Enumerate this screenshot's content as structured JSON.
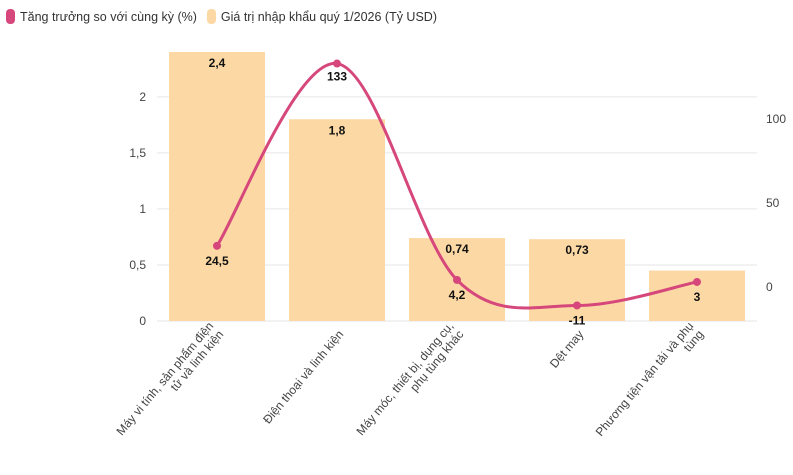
{
  "chart_data": {
    "type": "bar",
    "categories": [
      [
        "Máy vi tính, sản phẩm điện",
        "tử và linh kiện"
      ],
      [
        "Điện thoại và linh kiện"
      ],
      [
        "Máy móc, thiết bị, dụng cụ,",
        "phụ tùng khác"
      ],
      [
        "Dệt may"
      ],
      [
        "Phương tiện vận tải và phụ",
        "tùng"
      ]
    ],
    "series": [
      {
        "name": "Giá trị nhập khẩu quý 1/2026 (Tỷ USD)",
        "type": "bar",
        "axis": "left",
        "color": "#fcd9a4",
        "values": [
          2.4,
          1.8,
          0.74,
          0.73,
          0.45
        ],
        "labels": [
          "2,4",
          "1,8",
          "0,74",
          "0,73",
          ""
        ]
      },
      {
        "name": "Tăng trưởng so với cùng kỳ (%)",
        "type": "line",
        "axis": "right",
        "color": "#d6477b",
        "values": [
          24.5,
          133,
          4.2,
          -11,
          3
        ],
        "labels": [
          "24,5",
          "133",
          "4,2",
          "-11",
          "3"
        ]
      }
    ],
    "left_axis": {
      "ylim": [
        0,
        2.4
      ],
      "ticks": [
        0,
        0.5,
        1,
        1.5,
        2
      ],
      "tick_labels": [
        "0",
        "0,5",
        "1",
        "1,5",
        "2"
      ]
    },
    "right_axis": {
      "ylim": [
        -20,
        140
      ],
      "ticks": [
        0,
        50,
        100
      ],
      "tick_labels": [
        "0",
        "50",
        "100"
      ]
    },
    "grid": true,
    "legend": "top-left"
  }
}
